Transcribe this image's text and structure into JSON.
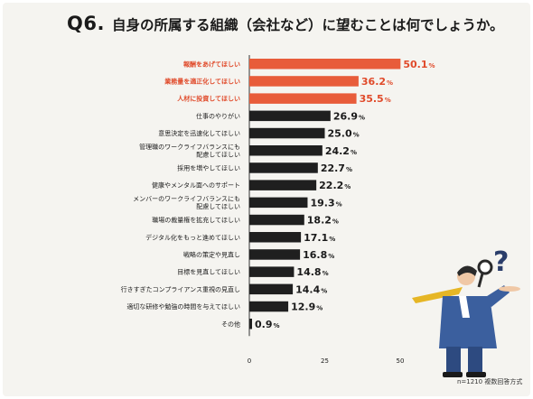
{
  "title": {
    "q": "Q6.",
    "text": "自身の所属する組織（会社など）に望むことは何でしょうか。"
  },
  "footnote": "n=1210  複数回答方式",
  "colors": {
    "highlight": "#e85c3a",
    "normal": "#1f1f1f",
    "highlight_text": "#e04a2a",
    "background": "#f5f4f0"
  },
  "chart_data": {
    "type": "bar",
    "orientation": "horizontal",
    "value_suffix": "%",
    "categories": [
      "報酬をあげてほしい",
      "業務量を適正化してほしい",
      "人材に投資してほしい",
      "仕事のやりがい",
      "意思決定を迅速化してほしい",
      "管理職のワークライフバランスにも\n配慮してほしい",
      "採用を増やしてほしい",
      "健康やメンタル面へのサポート",
      "メンバーのワークライフバランスにも\n配慮してほしい",
      "職場の裁量権を拡充してほしい",
      "デジタル化をもっと進めてほしい",
      "戦略の策定や見直し",
      "目標を見直してほしい",
      "行きすぎたコンプライアンス重視の見直し",
      "適切な研修や勉強の時間を与えてほしい",
      "その他"
    ],
    "values": [
      50.1,
      36.2,
      35.5,
      26.9,
      25.0,
      24.2,
      22.7,
      22.2,
      19.3,
      18.2,
      17.1,
      16.8,
      14.8,
      14.4,
      12.9,
      0.9
    ],
    "value_labels": [
      "50.1",
      "36.2",
      "35.5",
      "26.9",
      "25.0",
      "24.2",
      "22.7",
      "22.2",
      "19.3",
      "18.2",
      "17.1",
      "16.8",
      "14.8",
      "14.4",
      "12.9",
      "0.9"
    ],
    "highlighted": [
      true,
      true,
      true,
      false,
      false,
      false,
      false,
      false,
      false,
      false,
      false,
      false,
      false,
      false,
      false,
      false
    ],
    "xlim": [
      0,
      50
    ],
    "xticks": [
      "0",
      "25",
      "50"
    ],
    "grid": false
  }
}
